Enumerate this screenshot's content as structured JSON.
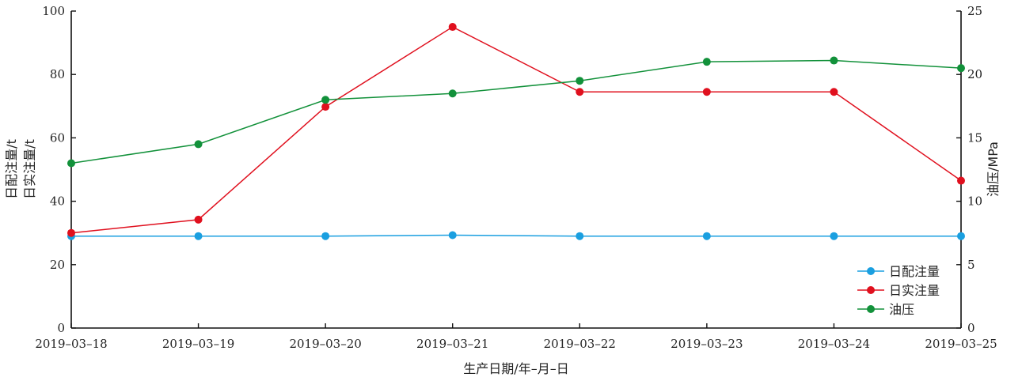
{
  "chart_data": {
    "type": "line",
    "xlabel": "生产日期/年–月–日",
    "ylabel_left_lines": [
      "日配注量/t",
      "日实注量/t"
    ],
    "ylabel_right": "油压/MPa",
    "categories": [
      "2019–03–18",
      "2019–03–19",
      "2019–03–20",
      "2019–03–21",
      "2019–03–22",
      "2019–03–23",
      "2019–03–24",
      "2019–03–25"
    ],
    "ylim_left": [
      0,
      100
    ],
    "yticks_left": [
      "0",
      "20",
      "40",
      "60",
      "80",
      "100"
    ],
    "ylim_right": [
      0,
      25
    ],
    "yticks_right": [
      "0",
      "5",
      "10",
      "15",
      "20",
      "25"
    ],
    "grid": false,
    "legend_position": "bottom-right",
    "series": [
      {
        "name": "日配注量",
        "axis": "left",
        "color": "#1a9fe0",
        "values": [
          29,
          29,
          29,
          29.3,
          29,
          29,
          29,
          29
        ]
      },
      {
        "name": "日实注量",
        "axis": "left",
        "color": "#e0101e",
        "values": [
          30,
          34.2,
          69.8,
          95,
          74.5,
          74.5,
          74.5,
          46.5
        ]
      },
      {
        "name": "油压",
        "axis": "right",
        "color": "#12913a",
        "values": [
          13,
          14.5,
          18,
          18.5,
          19.5,
          21,
          21.1,
          20.5
        ]
      }
    ]
  }
}
